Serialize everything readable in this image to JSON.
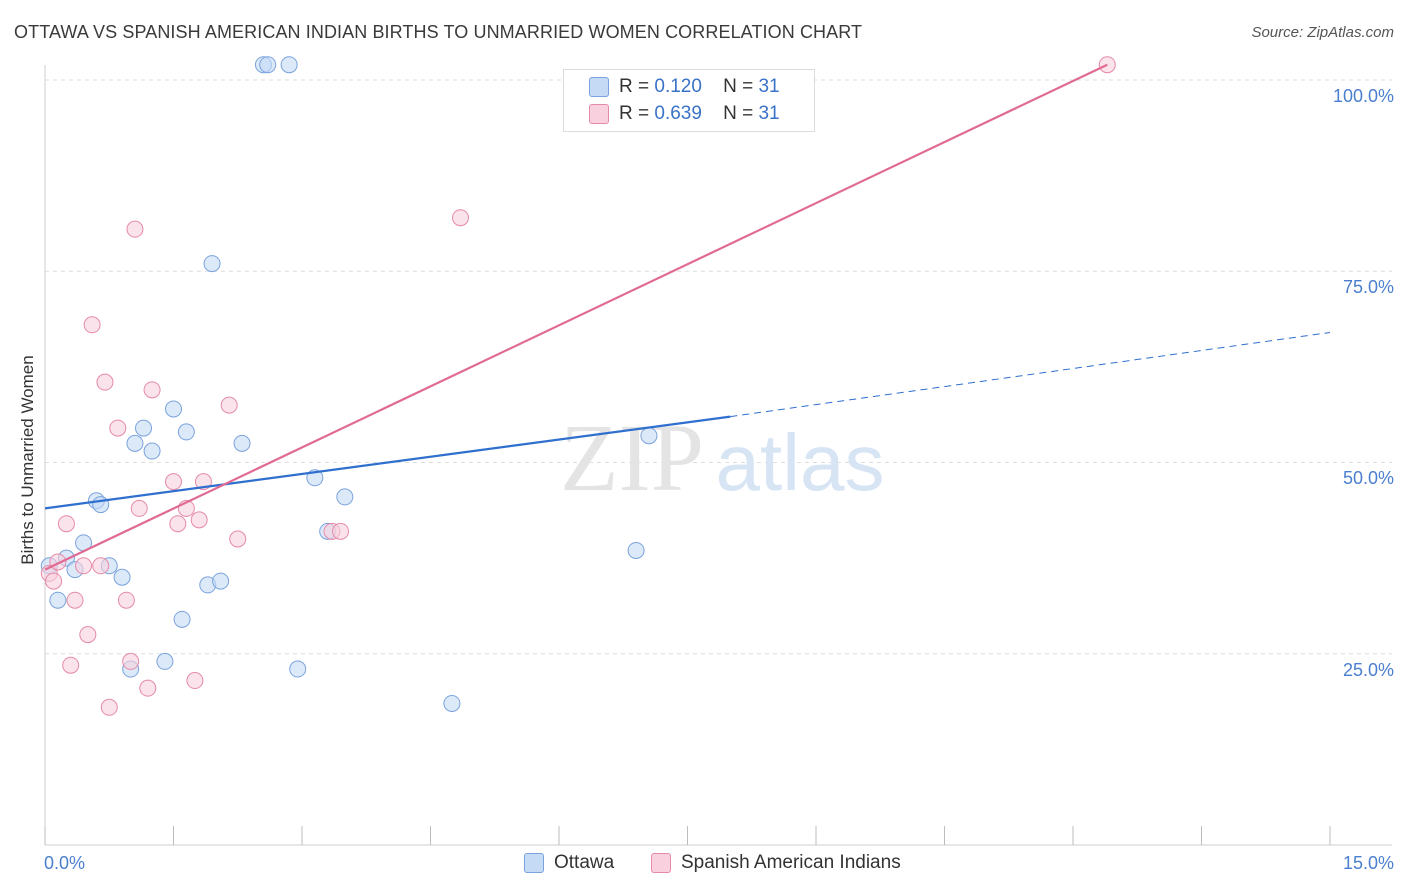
{
  "title": "OTTAWA VS SPANISH AMERICAN INDIAN BIRTHS TO UNMARRIED WOMEN CORRELATION CHART",
  "source": "Source: ZipAtlas.com",
  "watermark": {
    "zip": "ZIP",
    "atlas": "atlas"
  },
  "legend": {
    "rows": [
      {
        "r_label": "R =",
        "r_value": "0.120",
        "n_label": "N =",
        "n_value": "31",
        "color": "#b8d1f0",
        "stroke": "#7aa3dd"
      },
      {
        "r_label": "R =",
        "r_value": "0.639",
        "n_label": "N =",
        "n_value": "31",
        "color": "#f8c6d6",
        "stroke": "#e58aa8"
      }
    ]
  },
  "bottom_legend": [
    "Ottawa",
    "Spanish American Indians"
  ],
  "chart_data": {
    "type": "scatter",
    "title": "OTTAWA VS SPANISH AMERICAN INDIAN BIRTHS TO UNMARRIED WOMEN CORRELATION CHART",
    "xlabel": "",
    "ylabel": "Births to Unmarried Women",
    "xlim": [
      0,
      15
    ],
    "ylim": [
      0,
      105
    ],
    "x_tick_labels": [
      "0.0%",
      "15.0%"
    ],
    "y_tick_labels": [
      "100.0%",
      "75.0%",
      "50.0%",
      "25.0%"
    ],
    "y_ticks": [
      100,
      75,
      50,
      25
    ],
    "grid": true,
    "series": [
      {
        "name": "Ottawa",
        "color": "#7aa3dd",
        "fill": "#c5daf5",
        "line_color": "#2f6fce",
        "trend": {
          "x0": 0,
          "y0": 44,
          "x1": 8.0,
          "y1": 56,
          "dash_to_x": 15,
          "dash_to_y": 67
        },
        "points": [
          [
            0.05,
            36.5
          ],
          [
            0.15,
            32
          ],
          [
            0.25,
            37.5
          ],
          [
            0.35,
            36
          ],
          [
            0.45,
            39.5
          ],
          [
            0.6,
            45
          ],
          [
            0.65,
            44.5
          ],
          [
            0.75,
            36.5
          ],
          [
            0.9,
            35
          ],
          [
            1.0,
            23
          ],
          [
            1.05,
            52.5
          ],
          [
            1.15,
            54.5
          ],
          [
            1.25,
            51.5
          ],
          [
            1.4,
            24
          ],
          [
            1.5,
            57
          ],
          [
            1.6,
            29.5
          ],
          [
            1.65,
            54
          ],
          [
            1.9,
            34
          ],
          [
            1.95,
            76
          ],
          [
            2.05,
            34.5
          ],
          [
            2.3,
            52.5
          ],
          [
            2.55,
            102
          ],
          [
            2.6,
            102
          ],
          [
            2.85,
            102
          ],
          [
            2.95,
            23
          ],
          [
            3.15,
            48
          ],
          [
            3.3,
            41
          ],
          [
            3.5,
            45.5
          ],
          [
            4.75,
            18.5
          ],
          [
            6.9,
            38.5
          ],
          [
            7.05,
            53.5
          ]
        ]
      },
      {
        "name": "Spanish American Indians",
        "color": "#e58aa8",
        "fill": "#f9d0de",
        "line_color": "#e06a94",
        "trend": {
          "x0": 0,
          "y0": 36,
          "x1": 12.4,
          "y1": 102
        },
        "points": [
          [
            0.05,
            35.5
          ],
          [
            0.1,
            34.5
          ],
          [
            0.15,
            37
          ],
          [
            0.25,
            42
          ],
          [
            0.3,
            23.5
          ],
          [
            0.35,
            32
          ],
          [
            0.45,
            36.5
          ],
          [
            0.5,
            27.5
          ],
          [
            0.55,
            68
          ],
          [
            0.65,
            36.5
          ],
          [
            0.7,
            60.5
          ],
          [
            0.75,
            18
          ],
          [
            0.85,
            54.5
          ],
          [
            0.95,
            32
          ],
          [
            1.0,
            24
          ],
          [
            1.05,
            80.5
          ],
          [
            1.1,
            44
          ],
          [
            1.2,
            20.5
          ],
          [
            1.25,
            59.5
          ],
          [
            1.5,
            47.5
          ],
          [
            1.55,
            42
          ],
          [
            1.65,
            44
          ],
          [
            1.75,
            21.5
          ],
          [
            1.8,
            42.5
          ],
          [
            1.85,
            47.5
          ],
          [
            2.15,
            57.5
          ],
          [
            2.25,
            40
          ],
          [
            3.35,
            41
          ],
          [
            3.45,
            41
          ],
          [
            4.85,
            82
          ],
          [
            12.4,
            102
          ]
        ]
      }
    ]
  }
}
